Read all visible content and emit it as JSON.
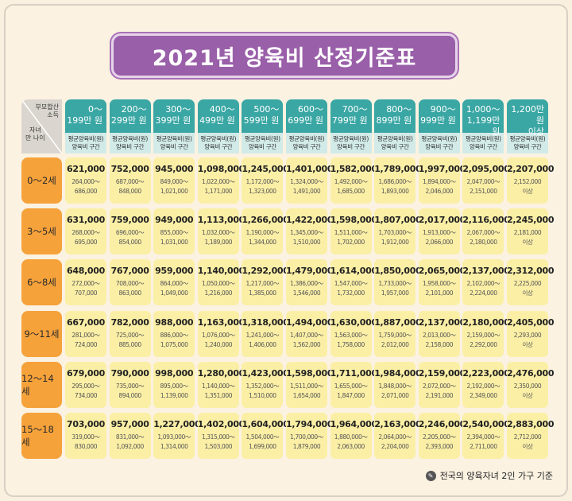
{
  "title": "2021년 양육비 산정기준표",
  "corner": {
    "top_label": "부모합산\n소득",
    "bottom_label": "자녀\n만 나이"
  },
  "income_brackets": [
    {
      "label": "0～\n199만 원",
      "sub": "평균양육비(원)\n양육비 구간"
    },
    {
      "label": "200～\n299만 원",
      "sub": "평균양육비(원)\n양육비 구간"
    },
    {
      "label": "300～\n399만 원",
      "sub": "평균양육비(원)\n양육비 구간"
    },
    {
      "label": "400～\n499만 원",
      "sub": "평균양육비(원)\n양육비 구간"
    },
    {
      "label": "500～\n599만 원",
      "sub": "평균양육비(원)\n양육비 구간"
    },
    {
      "label": "600～\n699만 원",
      "sub": "평균양육비(원)\n양육비 구간"
    },
    {
      "label": "700～\n799만 원",
      "sub": "평균양육비(원)\n양육비 구간"
    },
    {
      "label": "800～\n899만 원",
      "sub": "평균양육비(원)\n양육비 구간"
    },
    {
      "label": "900～\n999만 원",
      "sub": "평균양육비(원)\n양육비 구간"
    },
    {
      "label": "1,000～\n1,199만 원",
      "sub": "평균양육비(원)\n양육비 구간"
    },
    {
      "label": "1,200만 원\n이상",
      "sub": "평균양육비(원)\n양육비 구간"
    }
  ],
  "rows": [
    {
      "age": "0～2세",
      "cells": [
        {
          "avg": "621,000",
          "range": "264,000～\n686,000"
        },
        {
          "avg": "752,000",
          "range": "687,000～\n848,000"
        },
        {
          "avg": "945,000",
          "range": "849,000～\n1,021,000"
        },
        {
          "avg": "1,098,000",
          "range": "1,022,000～\n1,171,000"
        },
        {
          "avg": "1,245,000",
          "range": "1,172,000～\n1,323,000"
        },
        {
          "avg": "1,401,000",
          "range": "1,324,000～\n1,491,000"
        },
        {
          "avg": "1,582,000",
          "range": "1,492,000～\n1,685,000"
        },
        {
          "avg": "1,789,000",
          "range": "1,686,000～\n1,893,000"
        },
        {
          "avg": "1,997,000",
          "range": "1,894,000～\n2,046,000"
        },
        {
          "avg": "2,095,000",
          "range": "2,047,000～\n2,151,000"
        },
        {
          "avg": "2,207,000",
          "range": "2,152,000\n이상"
        }
      ]
    },
    {
      "age": "3～5세",
      "cells": [
        {
          "avg": "631,000",
          "range": "268,000～\n695,000"
        },
        {
          "avg": "759,000",
          "range": "696,000～\n854,000"
        },
        {
          "avg": "949,000",
          "range": "855,000～\n1,031,000"
        },
        {
          "avg": "1,113,000",
          "range": "1,032,000～\n1,189,000"
        },
        {
          "avg": "1,266,000",
          "range": "1,190,000～\n1,344,000"
        },
        {
          "avg": "1,422,000",
          "range": "1,345,000～\n1,510,000"
        },
        {
          "avg": "1,598,000",
          "range": "1,511,000～\n1,702,000"
        },
        {
          "avg": "1,807,000",
          "range": "1,703,000～\n1,912,000"
        },
        {
          "avg": "2,017,000",
          "range": "1,913,000～\n2,066,000"
        },
        {
          "avg": "2,116,000",
          "range": "2,067,000～\n2,180,000"
        },
        {
          "avg": "2,245,000",
          "range": "2,181,000\n이상"
        }
      ]
    },
    {
      "age": "6～8세",
      "cells": [
        {
          "avg": "648,000",
          "range": "272,000～\n707,000"
        },
        {
          "avg": "767,000",
          "range": "708,000～\n863,000"
        },
        {
          "avg": "959,000",
          "range": "864,000～\n1,049,000"
        },
        {
          "avg": "1,140,000",
          "range": "1,050,000～\n1,216,000"
        },
        {
          "avg": "1,292,000",
          "range": "1,217,000～\n1,385,000"
        },
        {
          "avg": "1,479,000",
          "range": "1,386,000～\n1,546,000"
        },
        {
          "avg": "1,614,000",
          "range": "1,547,000～\n1,732,000"
        },
        {
          "avg": "1,850,000",
          "range": "1,733,000～\n1,957,000"
        },
        {
          "avg": "2,065,000",
          "range": "1,958,000～\n2,101,000"
        },
        {
          "avg": "2,137,000",
          "range": "2,102,000～\n2,224,000"
        },
        {
          "avg": "2,312,000",
          "range": "2,225,000\n이상"
        }
      ]
    },
    {
      "age": "9～11세",
      "cells": [
        {
          "avg": "667,000",
          "range": "281,000～\n724,000"
        },
        {
          "avg": "782,000",
          "range": "725,000～\n885,000"
        },
        {
          "avg": "988,000",
          "range": "886,000～\n1,075,000"
        },
        {
          "avg": "1,163,000",
          "range": "1,076,000～\n1,240,000"
        },
        {
          "avg": "1,318,000",
          "range": "1,241,000～\n1,406,000"
        },
        {
          "avg": "1,494,000",
          "range": "1,407,000～\n1,562,000"
        },
        {
          "avg": "1,630,000",
          "range": "1,563,000～\n1,758,000"
        },
        {
          "avg": "1,887,000",
          "range": "1,759,000～\n2,012,000"
        },
        {
          "avg": "2,137,000",
          "range": "2,013,000～\n2,158,000"
        },
        {
          "avg": "2,180,000",
          "range": "2,159,000～\n2,292,000"
        },
        {
          "avg": "2,405,000",
          "range": "2,293,000\n이상"
        }
      ]
    },
    {
      "age": "12～14세",
      "cells": [
        {
          "avg": "679,000",
          "range": "295,000～\n734,000"
        },
        {
          "avg": "790,000",
          "range": "735,000～\n894,000"
        },
        {
          "avg": "998,000",
          "range": "895,000～\n1,139,000"
        },
        {
          "avg": "1,280,000",
          "range": "1,140,000～\n1,351,000"
        },
        {
          "avg": "1,423,000",
          "range": "1,352,000～\n1,510,000"
        },
        {
          "avg": "1,598,000",
          "range": "1,511,000～\n1,654,000"
        },
        {
          "avg": "1,711,000",
          "range": "1,655,000～\n1,847,000"
        },
        {
          "avg": "1,984,000",
          "range": "1,848,000～\n2,071,000"
        },
        {
          "avg": "2,159,000",
          "range": "2,072,000～\n2,191,000"
        },
        {
          "avg": "2,223,000",
          "range": "2,192,000～\n2,349,000"
        },
        {
          "avg": "2,476,000",
          "range": "2,350,000\n이상"
        }
      ]
    },
    {
      "age": "15～18세",
      "cells": [
        {
          "avg": "703,000",
          "range": "319,000～\n830,000"
        },
        {
          "avg": "957,000",
          "range": "831,000～\n1,092,000"
        },
        {
          "avg": "1,227,000",
          "range": "1,093,000～\n1,314,000"
        },
        {
          "avg": "1,402,000",
          "range": "1,315,000～\n1,503,000"
        },
        {
          "avg": "1,604,000",
          "range": "1,504,000～\n1,699,000"
        },
        {
          "avg": "1,794,000",
          "range": "1,700,000～\n1,879,000"
        },
        {
          "avg": "1,964,000",
          "range": "1,880,000～\n2,063,000"
        },
        {
          "avg": "2,163,000",
          "range": "2,064,000～\n2,204,000"
        },
        {
          "avg": "2,246,000",
          "range": "2,205,000～\n2,393,000"
        },
        {
          "avg": "2,540,000",
          "range": "2,394,000～\n2,711,000"
        },
        {
          "avg": "2,883,000",
          "range": "2,712,000\n이상"
        }
      ]
    }
  ],
  "footer": {
    "icon": "info-icon",
    "note": "전국의 양육자녀 2인 가구 기준"
  },
  "colors": {
    "title_bg": "#9a5fa9",
    "header_bg": "#3aa7a4",
    "header_sub_bg": "#d2ebe9",
    "age_bg": "#f6a23b",
    "cell_bg": "#fbefa6",
    "page_bg": "#faf0df"
  }
}
